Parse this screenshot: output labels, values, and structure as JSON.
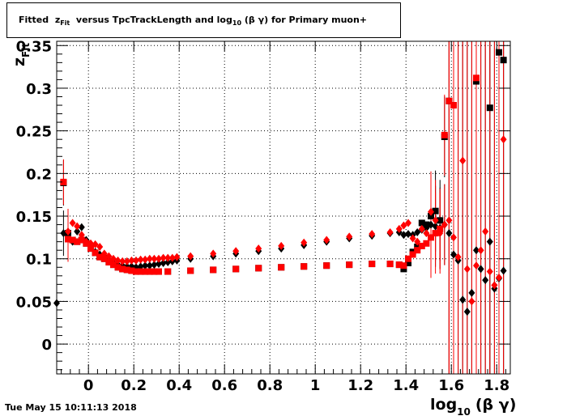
{
  "title": {
    "prefix": "Fitted",
    "var": "z",
    "var_sub": "Fit",
    "middle": "versus TpcTrackLength and log",
    "log_sub": "10",
    "suffix": "(β γ) for Primary muon+"
  },
  "timestamp": "Tue May 15 10:11:13 2018",
  "chart_data": {
    "type": "scatter",
    "xlabel": {
      "main": "log",
      "sub": "10",
      "rest": "(β γ)"
    },
    "ylabel": {
      "main": "z",
      "sub": "Fit"
    },
    "xlim": [
      -0.14,
      1.86
    ],
    "ylim": [
      -0.035,
      0.355
    ],
    "x_ticks": [
      0,
      0.2,
      0.4,
      0.6,
      0.8,
      1,
      1.2,
      1.4,
      1.6,
      1.8
    ],
    "x_tick_labels": [
      "0",
      "0.2",
      "0.4",
      "0.6",
      "0.8",
      "1",
      "1.2",
      "1.4",
      "1.6",
      "1.8"
    ],
    "y_ticks": [
      0,
      0.05,
      0.1,
      0.15,
      0.2,
      0.25,
      0.3,
      0.35
    ],
    "y_tick_labels": [
      "0",
      "0.05",
      "0.1",
      "0.15",
      "0.2",
      "0.25",
      "0.3",
      "0.35"
    ],
    "grid": true,
    "series": [
      {
        "marker": "diamond",
        "color": "#000000",
        "x": [
          -0.14,
          -0.11,
          -0.09,
          -0.07,
          -0.05,
          -0.03,
          -0.01,
          0.01,
          0.03,
          0.05,
          0.07,
          0.09,
          0.11,
          0.13,
          0.15,
          0.17,
          0.19,
          0.21,
          0.23,
          0.25,
          0.27,
          0.29,
          0.31,
          0.33,
          0.35,
          0.37,
          0.39,
          0.45,
          0.55,
          0.65,
          0.75,
          0.85,
          0.95,
          1.05,
          1.15,
          1.25,
          1.33,
          1.37,
          1.39,
          1.41,
          1.43,
          1.45,
          1.47,
          1.49,
          1.51,
          1.53,
          1.55,
          1.57,
          1.59,
          1.61,
          1.63,
          1.65,
          1.67,
          1.69,
          1.71,
          1.73,
          1.75,
          1.77,
          1.79,
          1.81,
          1.83
        ],
        "y": [
          0.048,
          0.13,
          0.125,
          0.12,
          0.132,
          0.137,
          0.122,
          0.113,
          0.108,
          0.105,
          0.103,
          0.098,
          0.095,
          0.093,
          0.092,
          0.091,
          0.091,
          0.09,
          0.091,
          0.092,
          0.092,
          0.093,
          0.094,
          0.095,
          0.096,
          0.097,
          0.098,
          0.1,
          0.103,
          0.106,
          0.109,
          0.112,
          0.116,
          0.12,
          0.124,
          0.127,
          0.13,
          0.131,
          0.128,
          0.129,
          0.128,
          0.131,
          0.134,
          0.136,
          0.14,
          0.138,
          0.136,
          0.14,
          0.13,
          0.105,
          0.098,
          0.052,
          0.038,
          0.06,
          0.11,
          0.088,
          0.075,
          0.12,
          0.065,
          0.077,
          0.086
        ]
      },
      {
        "marker": "square",
        "color": "#000000",
        "x": [
          -0.11,
          -0.09,
          -0.07,
          -0.05,
          -0.03,
          -0.01,
          0.01,
          0.03,
          0.05,
          0.07,
          0.09,
          0.11,
          0.13,
          0.15,
          0.17,
          0.19,
          0.21,
          0.23,
          0.25,
          0.27,
          0.29,
          0.31,
          0.35,
          0.45,
          0.55,
          0.65,
          0.75,
          0.85,
          0.95,
          1.05,
          1.15,
          1.25,
          1.33,
          1.37,
          1.39,
          1.41,
          1.43,
          1.45,
          1.47,
          1.49,
          1.51,
          1.53,
          1.55,
          1.57,
          1.59,
          1.61,
          1.71,
          1.77,
          1.81,
          1.83
        ],
        "y": [
          0.189,
          0.13,
          0.122,
          0.12,
          0.122,
          0.118,
          0.112,
          0.107,
          0.102,
          0.1,
          0.096,
          0.093,
          0.09,
          0.088,
          0.087,
          0.086,
          0.085,
          0.085,
          0.085,
          0.085,
          0.085,
          0.085,
          0.085,
          0.086,
          0.087,
          0.088,
          0.089,
          0.09,
          0.091,
          0.092,
          0.093,
          0.094,
          0.094,
          0.093,
          0.088,
          0.095,
          0.108,
          0.114,
          0.142,
          0.14,
          0.15,
          0.156,
          0.145,
          0.243,
          0.285,
          0.28,
          0.308,
          0.277,
          0.342,
          0.333
        ]
      },
      {
        "marker": "diamond",
        "color": "#ff0000",
        "x": [
          -0.09,
          -0.07,
          -0.05,
          -0.03,
          -0.01,
          0.01,
          0.03,
          0.05,
          0.07,
          0.09,
          0.11,
          0.13,
          0.15,
          0.17,
          0.19,
          0.21,
          0.23,
          0.25,
          0.27,
          0.29,
          0.31,
          0.33,
          0.35,
          0.37,
          0.39,
          0.45,
          0.55,
          0.65,
          0.75,
          0.85,
          0.95,
          1.05,
          1.15,
          1.25,
          1.33,
          1.37,
          1.39,
          1.41,
          1.43,
          1.45,
          1.47,
          1.49,
          1.51,
          1.53,
          1.55,
          1.57,
          1.59,
          1.61,
          1.63,
          1.65,
          1.67,
          1.69,
          1.71,
          1.73,
          1.75,
          1.77,
          1.79,
          1.81,
          1.83
        ],
        "y": [
          0.132,
          0.142,
          0.138,
          0.128,
          0.12,
          0.118,
          0.117,
          0.114,
          0.106,
          0.103,
          0.1,
          0.098,
          0.097,
          0.097,
          0.098,
          0.098,
          0.099,
          0.099,
          0.1,
          0.1,
          0.1,
          0.101,
          0.101,
          0.101,
          0.102,
          0.103,
          0.106,
          0.109,
          0.112,
          0.115,
          0.119,
          0.122,
          0.126,
          0.129,
          0.131,
          0.135,
          0.139,
          0.142,
          0.124,
          0.12,
          0.135,
          0.13,
          0.155,
          0.145,
          0.13,
          0.14,
          0.145,
          0.125,
          0.102,
          0.215,
          0.088,
          0.05,
          0.092,
          0.11,
          0.132,
          0.085,
          0.069,
          0.078,
          0.24
        ]
      },
      {
        "marker": "square",
        "color": "#ff0000",
        "x": [
          -0.11,
          -0.09,
          -0.07,
          -0.05,
          -0.03,
          -0.01,
          0.01,
          0.03,
          0.05,
          0.07,
          0.09,
          0.11,
          0.13,
          0.15,
          0.17,
          0.19,
          0.21,
          0.23,
          0.25,
          0.27,
          0.29,
          0.31,
          0.35,
          0.45,
          0.55,
          0.65,
          0.75,
          0.85,
          0.95,
          1.05,
          1.15,
          1.25,
          1.33,
          1.37,
          1.39,
          1.41,
          1.43,
          1.45,
          1.47,
          1.49,
          1.51,
          1.53,
          1.55,
          1.57,
          1.59,
          1.61,
          1.71
        ],
        "y": [
          0.19,
          0.123,
          0.122,
          0.12,
          0.122,
          0.118,
          0.112,
          0.107,
          0.102,
          0.1,
          0.096,
          0.093,
          0.09,
          0.088,
          0.087,
          0.086,
          0.085,
          0.085,
          0.085,
          0.085,
          0.085,
          0.085,
          0.085,
          0.086,
          0.087,
          0.088,
          0.089,
          0.09,
          0.091,
          0.092,
          0.093,
          0.094,
          0.094,
          0.093,
          0.092,
          0.1,
          0.105,
          0.11,
          0.115,
          0.118,
          0.125,
          0.13,
          0.135,
          0.245,
          0.285,
          0.28,
          0.312
        ]
      }
    ]
  }
}
